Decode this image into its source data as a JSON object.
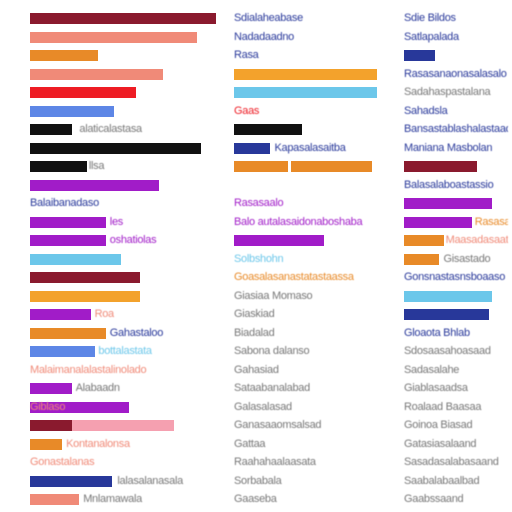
{
  "colors": {
    "maroon": "#8a1a2e",
    "salmon": "#f08a78",
    "orange": "#e88a28",
    "red": "#ee1c24",
    "blue": "#5d86e6",
    "black": "#111111",
    "purple": "#a11cc8",
    "sky": "#6cc7ea",
    "gold": "#f3a22c",
    "pink": "#f5a0b0",
    "navy": "#28389a",
    "gray": "#777777",
    "teal": "#3a7aa0"
  },
  "left_rows": [
    {
      "segs": [
        [
          "maroon",
          0,
          0.98
        ]
      ],
      "text": ""
    },
    {
      "segs": [
        [
          "salmon",
          0,
          0.88
        ]
      ],
      "text": ""
    },
    {
      "segs": [
        [
          "orange",
          0,
          0.36
        ]
      ],
      "text": ""
    },
    {
      "segs": [
        [
          "salmon",
          0,
          0.7
        ]
      ],
      "text": ""
    },
    {
      "segs": [
        [
          "red",
          0,
          0.56
        ]
      ],
      "text": ""
    },
    {
      "segs": [
        [
          "blue",
          0,
          0.44
        ]
      ],
      "text": ""
    },
    {
      "segs": [
        [
          "black",
          0,
          0.22
        ]
      ],
      "text": "alaticalastasa",
      "tx": 0.26,
      "tc": "gray"
    },
    {
      "segs": [
        [
          "black",
          0,
          0.9
        ]
      ],
      "text": ""
    },
    {
      "segs": [
        [
          "black",
          0,
          0.3
        ]
      ],
      "text": "llsa",
      "tx": 0.31,
      "tc": "gray"
    },
    {
      "segs": [
        [
          "purple",
          0,
          0.68
        ]
      ],
      "text": ""
    },
    {
      "segs": [],
      "text": "Balaibanadaso",
      "tx": 0,
      "tc": "navy"
    },
    {
      "segs": [
        [
          "purple",
          0,
          0.4
        ]
      ],
      "text": "les",
      "tx": 0.42,
      "tc": "purple"
    },
    {
      "segs": [
        [
          "purple",
          0,
          0.4
        ]
      ],
      "text": "oshatiolas",
      "tx": 0.42,
      "tc": "purple"
    },
    {
      "segs": [
        [
          "sky",
          0,
          0.48
        ]
      ],
      "text": ""
    },
    {
      "segs": [
        [
          "maroon",
          0,
          0.58
        ]
      ],
      "text": ""
    },
    {
      "segs": [
        [
          "gold",
          0,
          0.58
        ]
      ],
      "text": ""
    },
    {
      "segs": [
        [
          "purple",
          0,
          0.32
        ]
      ],
      "text": "Roa",
      "tx": 0.34,
      "tc": "salmon"
    },
    {
      "segs": [
        [
          "orange",
          0,
          0.4
        ]
      ],
      "text": "Gahastaloo",
      "tx": 0.42,
      "tc": "navy"
    },
    {
      "segs": [
        [
          "blue",
          0,
          0.34
        ]
      ],
      "text": "bottalastata",
      "tx": 0.36,
      "tc": "sky"
    },
    {
      "segs": [],
      "text": "Malaimanalalastalinolado",
      "tx": 0,
      "tc": "salmon"
    },
    {
      "segs": [
        [
          "purple",
          0,
          0.22
        ]
      ],
      "text": "Alabaadn",
      "tx": 0.24,
      "tc": "gray"
    },
    {
      "segs": [
        [
          "purple",
          0,
          0.52
        ]
      ],
      "text": "Giblaso",
      "tx": 0,
      "tc": "salmon"
    },
    {
      "segs": [
        [
          "maroon",
          0,
          0.22
        ],
        [
          "pink",
          0.22,
          0.76
        ]
      ],
      "text": ""
    },
    {
      "segs": [
        [
          "orange",
          0,
          0.17
        ]
      ],
      "text": "Kontanalonsa",
      "tx": 0.19,
      "tc": "salmon"
    },
    {
      "segs": [],
      "text": "Gonastalanas",
      "tx": 0,
      "tc": "salmon"
    },
    {
      "segs": [
        [
          "navy",
          0,
          0.43
        ]
      ],
      "text": "lalasalanasala",
      "tx": 0.46,
      "tc": "gray"
    },
    {
      "segs": [
        [
          "salmon",
          0,
          0.26
        ]
      ],
      "text": "Mnlamawala",
      "tx": 0.28,
      "tc": "gray"
    }
  ],
  "mid_rows": [
    {
      "segs": [],
      "text": "Sdialaheabase",
      "tx": 0,
      "tc": "navy"
    },
    {
      "segs": [],
      "text": "Nadadaadno",
      "tx": 0,
      "tc": "navy"
    },
    {
      "segs": [],
      "text": "Rasa",
      "tx": 0,
      "tc": "navy"
    },
    {
      "segs": [
        [
          "gold",
          0,
          0.95
        ]
      ],
      "text": ""
    },
    {
      "segs": [
        [
          "sky",
          0,
          0.95
        ]
      ],
      "text": ""
    },
    {
      "segs": [],
      "text": "Gaas",
      "tx": 0,
      "tc": "red"
    },
    {
      "segs": [
        [
          "black",
          0,
          0.45
        ]
      ],
      "text": ""
    },
    {
      "segs": [
        [
          "navy",
          0,
          0.24
        ]
      ],
      "text": "Kapasalasaitba",
      "tx": 0.27,
      "tc": "navy"
    },
    {
      "segs": [
        [
          "orange",
          0,
          0.36
        ],
        [
          "orange",
          0.38,
          0.92
        ]
      ],
      "text": ""
    },
    {
      "segs": [],
      "text": "",
      "tx": 0,
      "tc": "gray"
    },
    {
      "segs": [],
      "text": "Rasasaalo",
      "tx": 0,
      "tc": "purple"
    },
    {
      "segs": [],
      "text": "Balo autalasaidonaboshaba",
      "tx": 0,
      "tc": "purple"
    },
    {
      "segs": [
        [
          "purple",
          0,
          0.6
        ]
      ],
      "text": ""
    },
    {
      "segs": [],
      "text": "Solbshohn",
      "tx": 0,
      "tc": "sky"
    },
    {
      "segs": [],
      "text": "Goasalasanastatastaassa",
      "tx": 0,
      "tc": "orange"
    },
    {
      "segs": [],
      "text": "Giasiaa Momaso",
      "tx": 0,
      "tc": "gray"
    },
    {
      "segs": [],
      "text": "Giaskiad",
      "tx": 0,
      "tc": "gray"
    },
    {
      "segs": [],
      "text": "Biadalad",
      "tx": 0,
      "tc": "gray"
    },
    {
      "segs": [],
      "text": "Sabona dalanso",
      "tx": 0,
      "tc": "gray"
    },
    {
      "segs": [],
      "text": "Gahasiad",
      "tx": 0,
      "tc": "gray"
    },
    {
      "segs": [],
      "text": "Sataabanalabad",
      "tx": 0,
      "tc": "gray"
    },
    {
      "segs": [],
      "text": "Galasalasad",
      "tx": 0,
      "tc": "gray"
    },
    {
      "segs": [],
      "text": "Ganasaaomsalsad",
      "tx": 0,
      "tc": "gray"
    },
    {
      "segs": [],
      "text": "Gattaa",
      "tx": 0,
      "tc": "gray"
    },
    {
      "segs": [],
      "text": "Raahahaalaasata",
      "tx": 0,
      "tc": "gray"
    },
    {
      "segs": [],
      "text": "Sorbabala",
      "tx": 0,
      "tc": "gray"
    },
    {
      "segs": [],
      "text": "Gaaseba",
      "tx": 0,
      "tc": "gray"
    }
  ],
  "right_rows": [
    {
      "segs": [],
      "text": "Sdie Bildos",
      "tx": 0,
      "tc": "navy"
    },
    {
      "segs": [],
      "text": "Satlapalada",
      "tx": 0,
      "tc": "navy"
    },
    {
      "segs": [
        [
          "navy",
          0,
          0.3
        ]
      ],
      "text": ""
    },
    {
      "segs": [],
      "text": "Rasasanaonasalasalo",
      "tx": 0,
      "tc": "navy"
    },
    {
      "segs": [],
      "text": "Sadahaspastalana",
      "tx": 0,
      "tc": "gray"
    },
    {
      "segs": [],
      "text": "Sahadsla",
      "tx": 0,
      "tc": "navy"
    },
    {
      "segs": [],
      "text": "Bansastablashalastaad",
      "tx": 0,
      "tc": "navy"
    },
    {
      "segs": [],
      "text": "Maniana Masbolan",
      "tx": 0,
      "tc": "navy"
    },
    {
      "segs": [
        [
          "maroon",
          0,
          0.7
        ]
      ],
      "text": ""
    },
    {
      "segs": [],
      "text": "Balasalaboastassio",
      "tx": 0,
      "tc": "navy"
    },
    {
      "segs": [
        [
          "purple",
          0,
          0.85
        ]
      ],
      "text": ""
    },
    {
      "segs": [
        [
          "purple",
          0,
          0.65
        ]
      ],
      "text": "Rasasa",
      "tx": 0.68,
      "tc": "orange"
    },
    {
      "segs": [
        [
          "orange",
          0,
          0.38
        ]
      ],
      "text": "Maasadasaatsa",
      "tx": 0.4,
      "tc": "salmon"
    },
    {
      "segs": [
        [
          "orange",
          0,
          0.34
        ]
      ],
      "text": "Gisastado",
      "tx": 0.38,
      "tc": "gray"
    },
    {
      "segs": [],
      "text": "Gonsnastasnsboaaso",
      "tx": 0,
      "tc": "navy"
    },
    {
      "segs": [
        [
          "sky",
          0,
          0.85
        ]
      ],
      "text": ""
    },
    {
      "segs": [
        [
          "navy",
          0,
          0.82
        ]
      ],
      "text": ""
    },
    {
      "segs": [],
      "text": "Gloaota Bhlab",
      "tx": 0,
      "tc": "navy"
    },
    {
      "segs": [],
      "text": "Sdosaasahoasaad",
      "tx": 0,
      "tc": "gray"
    },
    {
      "segs": [],
      "text": "Sadasalahe",
      "tx": 0,
      "tc": "gray"
    },
    {
      "segs": [],
      "text": "Giablasaadsa",
      "tx": 0,
      "tc": "gray"
    },
    {
      "segs": [],
      "text": "Roalaad Baasaa",
      "tx": 0,
      "tc": "gray"
    },
    {
      "segs": [],
      "text": "Goinoa Biasad",
      "tx": 0,
      "tc": "gray"
    },
    {
      "segs": [],
      "text": "Gatasiasalaand",
      "tx": 0,
      "tc": "gray"
    },
    {
      "segs": [],
      "text": "Sasadasalabasaand",
      "tx": 0,
      "tc": "gray"
    },
    {
      "segs": [],
      "text": "Saabalabaalbad",
      "tx": 0,
      "tc": "gray"
    },
    {
      "segs": [],
      "text": "Gaabssaand",
      "tx": 0,
      "tc": "gray"
    }
  ]
}
